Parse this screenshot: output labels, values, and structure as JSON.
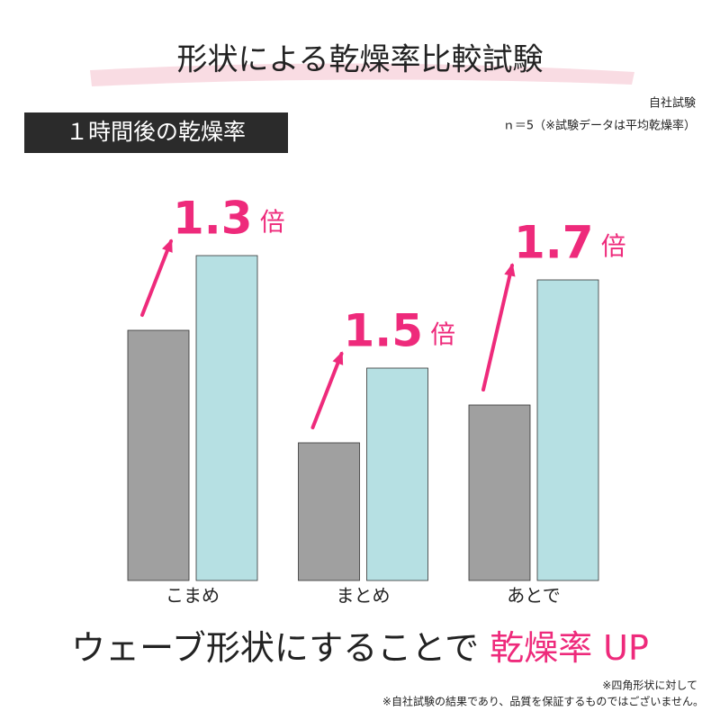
{
  "chart_data": {
    "type": "bar",
    "title": "形状による乾燥率比較試験",
    "subtitle": "１時間後の乾燥率",
    "notes": [
      "自社試験",
      "ｎ＝5（※試験データは平均乾燥率）"
    ],
    "categories": [
      "こまめ",
      "まとめ",
      "あとで"
    ],
    "series": [
      {
        "color": "#a0a0a0",
        "values": [
          278,
          153,
          195
        ]
      },
      {
        "color": "#b6e0e3",
        "values": [
          361,
          236,
          334
        ]
      }
    ],
    "ratio_labels": [
      "1.3",
      "1.5",
      "1.7"
    ],
    "ratio_unit": "倍",
    "ratio_color": "#ee2a7b",
    "headline": "ウェーブ形状にすることで",
    "headline_emphasis": "乾燥率 UP",
    "footnotes": [
      "※四角形状に対して",
      "※自社試験の結果であり、品質を保証するものではございません。"
    ]
  }
}
